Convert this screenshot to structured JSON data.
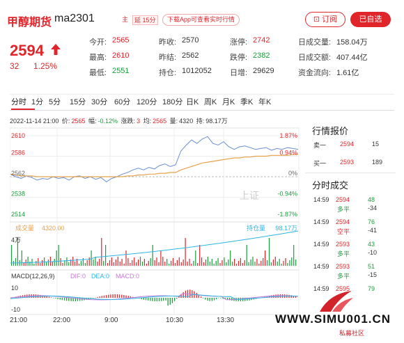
{
  "header": {
    "name": "甲醇期货",
    "code": "ma2301",
    "flag_main": "主",
    "flag_delay": "延 15分",
    "app_tip": "下载App可查看实时行情",
    "subscribe": "订阅",
    "favorite": "已自选"
  },
  "quote": {
    "price": "2594",
    "change": "32",
    "change_pct": "1.25%",
    "fields": [
      {
        "label": "今开:",
        "value": "2565",
        "color": "#e0252b"
      },
      {
        "label": "最高:",
        "value": "2610",
        "color": "#e0252b"
      },
      {
        "label": "最低:",
        "value": "2551",
        "color": "#1a9d3c"
      },
      {
        "label": "昨收:",
        "value": "2570",
        "color": "#333333"
      },
      {
        "label": "昨结:",
        "value": "2562",
        "color": "#333333"
      },
      {
        "label": "持仓:",
        "value": "1012052",
        "color": "#333333"
      },
      {
        "label": "涨停:",
        "value": "2742",
        "color": "#e0252b"
      },
      {
        "label": "跌停:",
        "value": "2382",
        "color": "#1a9d3c"
      },
      {
        "label": "日增:",
        "value": "29629",
        "color": "#333333"
      },
      {
        "label": "日成交量:",
        "value": "158.04万",
        "color": "#333333"
      },
      {
        "label": "日成交额:",
        "value": "407.44亿",
        "color": "#333333"
      },
      {
        "label": "资金流向:",
        "value": "1.61亿",
        "color": "#333333"
      }
    ]
  },
  "tabs": [
    "分时",
    "1分",
    "5分",
    "15分",
    "30分",
    "60分",
    "120分",
    "180分",
    "日K",
    "周K",
    "月K",
    "季K",
    "年K"
  ],
  "info": {
    "time": "2022-11-14 21:00",
    "price_label": "价:",
    "price": "2565",
    "amp_label": "幅:",
    "amp": "-0.12%",
    "diff_label": "涨跌:",
    "diff": "3",
    "avg_label": "均:",
    "avg": "2565",
    "vol_label": "量:",
    "vol": "4320",
    "oi_label": "持:",
    "oi": "98.17万"
  },
  "chart_data": {
    "type": "line",
    "price_ticks": [
      "2610",
      "2586",
      "2562",
      "2538",
      "2514"
    ],
    "pct_ticks": [
      "1.87%",
      "0.94%",
      "0%",
      "-0.94%",
      "-1.87%"
    ],
    "x_ticks": [
      "21:00",
      "22:00",
      "9:00",
      "10:30",
      "13:30"
    ],
    "ylim": [
      2514,
      2610
    ],
    "series": [
      {
        "name": "price",
        "color": "#6a8fd3",
        "values": [
          2565,
          2562,
          2560,
          2563,
          2561,
          2558,
          2560,
          2559,
          2562,
          2560,
          2561,
          2558,
          2562,
          2563,
          2560,
          2562,
          2559,
          2561,
          2556,
          2560,
          2562,
          2565,
          2567,
          2570,
          2572,
          2570,
          2573,
          2571,
          2575,
          2577,
          2574,
          2576,
          2592,
          2599,
          2605,
          2601,
          2606,
          2609,
          2601,
          2599,
          2603,
          2597,
          2594,
          2597,
          2598,
          2596,
          2594,
          2595,
          2596,
          2593,
          2595,
          2594,
          2596,
          2595,
          2594
        ]
      },
      {
        "name": "avg",
        "color": "#e8a04a",
        "values": [
          2565,
          2564,
          2563,
          2563,
          2563,
          2562,
          2562,
          2562,
          2562,
          2562,
          2562,
          2562,
          2562,
          2562,
          2562,
          2562,
          2562,
          2562,
          2562,
          2562,
          2562,
          2562,
          2563,
          2563,
          2564,
          2564,
          2565,
          2565,
          2566,
          2566,
          2567,
          2567,
          2570,
          2572,
          2574,
          2576,
          2578,
          2579,
          2580,
          2581,
          2582,
          2583,
          2584,
          2584,
          2585,
          2585,
          2586,
          2586,
          2586,
          2587,
          2587,
          2587,
          2587,
          2588,
          2588
        ]
      }
    ],
    "volume_label": "成交量",
    "volume_value": "4320.00",
    "volume_axis": "4万",
    "oi_label": "持仓量",
    "oi_value": "98.17万",
    "macd_label": "MACD(12,26,9)",
    "dif_label": "DIF:",
    "dif_value": "0",
    "dea_label": "DEA:",
    "dea_value": "0",
    "macd_value_label": "MACD:",
    "macd_value": "0",
    "macd_ticks": [
      "10",
      "-10"
    ],
    "watermark": "上证"
  },
  "quote_panel": {
    "title": "行情报价",
    "rows": [
      {
        "label": "卖一",
        "price": "2594",
        "vol": "15"
      },
      {
        "label": "买一",
        "price": "2593",
        "vol": "189"
      }
    ]
  },
  "trades": {
    "title": "分时成交",
    "rows": [
      {
        "time": "14:59",
        "price": "2594",
        "vol": "48",
        "type": "多平",
        "type_color": "#1a9d3c",
        "diff": "-34"
      },
      {
        "time": "14:59",
        "price": "2594",
        "vol": "76",
        "type": "空平",
        "type_color": "#e0252b",
        "diff": "-41"
      },
      {
        "time": "14:59",
        "price": "2593",
        "vol": "43",
        "type": "多平",
        "type_color": "#1a9d3c",
        "diff": "-10"
      },
      {
        "time": "14:59",
        "price": "2593",
        "vol": "51",
        "type": "多平",
        "type_color": "#1a9d3c",
        "diff": "-15"
      },
      {
        "time": "14:59",
        "price": "2595",
        "vol": "79",
        "type": "",
        "type_color": "#1a9d3c",
        "diff": ""
      }
    ]
  },
  "watermark": {
    "site": "WWW.SIMU001.CN",
    "sub": "私募社区"
  }
}
